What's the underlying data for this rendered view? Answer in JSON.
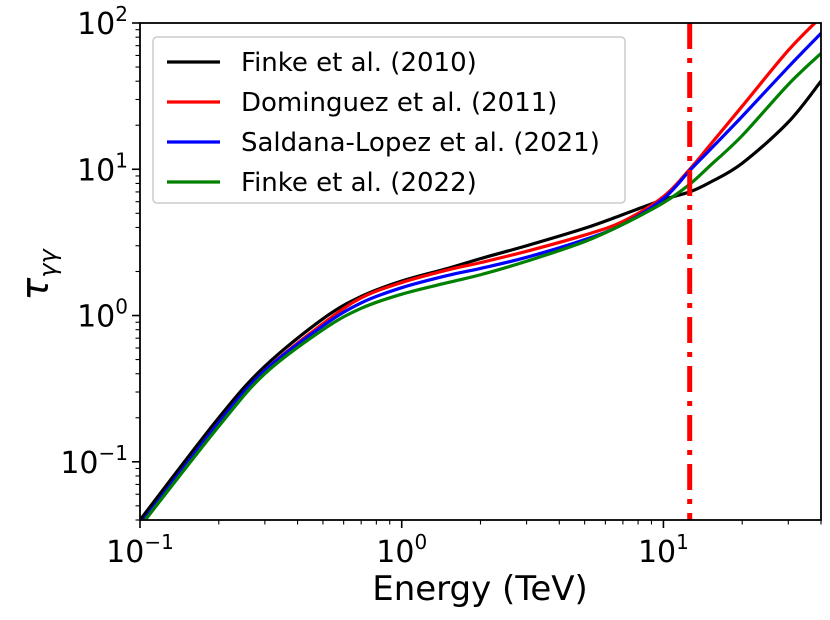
{
  "chart_data": {
    "type": "line",
    "title": "",
    "xlabel": "Energy (TeV)",
    "ylabel_symbol": "τ",
    "ylabel_subscript": "γγ",
    "xscale": "log",
    "yscale": "log",
    "xlim": [
      0.1,
      40
    ],
    "ylim": [
      0.04,
      100
    ],
    "grid": false,
    "legend_position": "top-left",
    "x_ticks": [
      {
        "value": 0.1,
        "base": "10",
        "exp": "−1"
      },
      {
        "value": 1,
        "base": "10",
        "exp": "0"
      },
      {
        "value": 10,
        "base": "10",
        "exp": "1"
      }
    ],
    "y_ticks": [
      {
        "value": 0.1,
        "base": "10",
        "exp": "−1"
      },
      {
        "value": 1,
        "base": "10",
        "exp": "0"
      },
      {
        "value": 10,
        "base": "10",
        "exp": "1"
      },
      {
        "value": 100,
        "base": "10",
        "exp": "2"
      }
    ],
    "x": [
      0.1,
      0.2,
      0.3,
      0.5,
      0.7,
      1,
      1.5,
      2,
      3,
      5,
      7,
      10,
      12.6,
      15,
      20,
      30,
      40
    ],
    "series": [
      {
        "name": "Finke et al. (2010)",
        "color": "#000000",
        "values": [
          0.04,
          0.2,
          0.45,
          0.95,
          1.35,
          1.72,
          2.1,
          2.45,
          3.0,
          3.95,
          4.9,
          6.2,
          7.0,
          8.1,
          11.0,
          21.0,
          40.0
        ]
      },
      {
        "name": "Dominguez et al. (2011)",
        "color": "#ff0000",
        "values": [
          0.036,
          0.18,
          0.42,
          0.88,
          1.32,
          1.68,
          2.05,
          2.3,
          2.75,
          3.55,
          4.4,
          6.5,
          10.0,
          14.5,
          27.0,
          65.0,
          110.0
        ]
      },
      {
        "name": "Saldana-Lopez et al. (2021)",
        "color": "#0000ff",
        "values": [
          0.037,
          0.185,
          0.42,
          0.85,
          1.22,
          1.55,
          1.88,
          2.1,
          2.5,
          3.3,
          4.2,
          6.3,
          9.8,
          13.5,
          23.0,
          50.0,
          85.0
        ]
      },
      {
        "name": "Finke et al. (2022)",
        "color": "#008000",
        "values": [
          0.036,
          0.175,
          0.4,
          0.8,
          1.12,
          1.4,
          1.68,
          1.9,
          2.35,
          3.2,
          4.2,
          5.9,
          7.9,
          10.5,
          17.0,
          38.0,
          62.0
        ]
      }
    ],
    "annotations": [
      {
        "type": "vertical_line",
        "x": 12.6,
        "color": "#ff0000",
        "style": "dash-dot"
      }
    ]
  }
}
